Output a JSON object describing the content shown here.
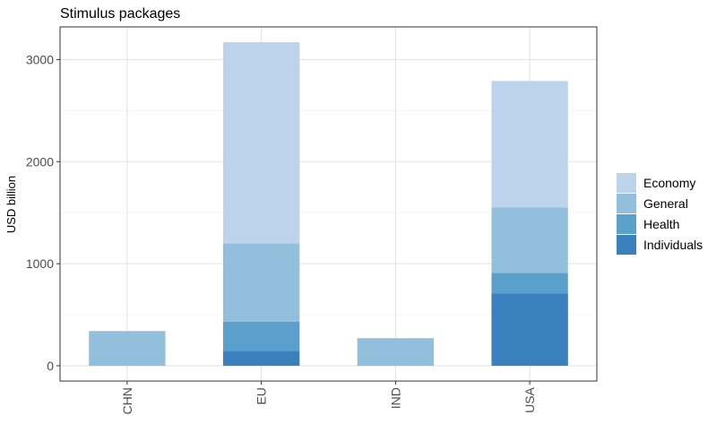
{
  "chart_data": {
    "type": "bar",
    "stacked": true,
    "title": "Stimulus packages",
    "xlabel": "",
    "ylabel": "USD billion",
    "categories": [
      "CHN",
      "EU",
      "IND",
      "USA"
    ],
    "ylim": [
      -150,
      3320
    ],
    "yticks": [
      0,
      1000,
      2000,
      3000
    ],
    "grid": true,
    "legend_position": "right",
    "series": [
      {
        "name": "Individuals",
        "color": "#3a80bd",
        "values": [
          0,
          145,
          0,
          710
        ]
      },
      {
        "name": "Health",
        "color": "#5b9fcc",
        "values": [
          0,
          285,
          0,
          200
        ]
      },
      {
        "name": "General",
        "color": "#92bfdc",
        "values": [
          340,
          770,
          270,
          640
        ]
      },
      {
        "name": "Economy",
        "color": "#bdd3ec",
        "values": [
          0,
          1970,
          0,
          1240
        ]
      }
    ],
    "legend_order": [
      "Economy",
      "General",
      "Health",
      "Individuals"
    ]
  }
}
